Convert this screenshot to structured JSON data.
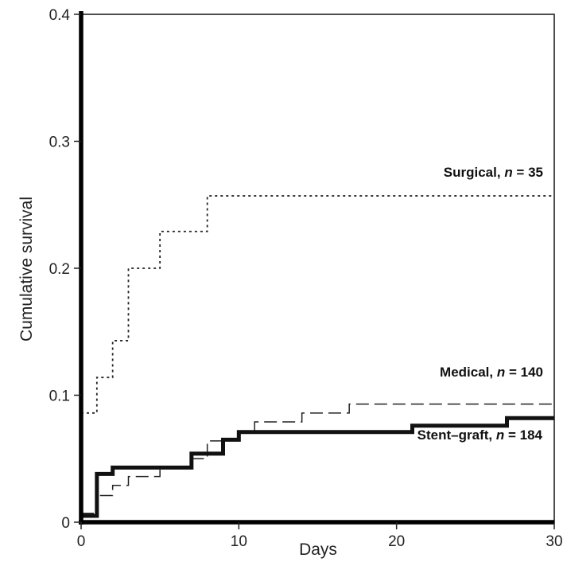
{
  "chart_data": {
    "type": "line",
    "title": "",
    "xlabel": "Days",
    "ylabel": "Cumulative survival",
    "xlim": [
      0,
      30
    ],
    "ylim": [
      0,
      0.4
    ],
    "x_ticks": [
      0,
      10,
      20,
      30
    ],
    "x_tick_labels": [
      "0",
      "10",
      "20",
      "30"
    ],
    "y_ticks": [
      0,
      0.1,
      0.2,
      0.3,
      0.4
    ],
    "y_tick_labels": [
      "0",
      "0.1",
      "0.2",
      "0.3",
      "0.4"
    ],
    "grid": false,
    "series": [
      {
        "name": "Surgical",
        "label_prefix": "Surgical, ",
        "label_n": "n",
        "label_suffix": " = 35",
        "line_style": "dotted",
        "color": "#222222",
        "x": [
          0,
          1,
          2,
          3,
          5,
          8,
          30
        ],
        "y": [
          0.086,
          0.114,
          0.143,
          0.2,
          0.229,
          0.257,
          0.257
        ]
      },
      {
        "name": "Medical",
        "label_prefix": "Medical, ",
        "label_n": "n",
        "label_suffix": " = 140",
        "line_style": "dashed",
        "color": "#222222",
        "x": [
          0,
          1,
          2,
          3,
          5,
          7,
          8,
          10,
          11,
          14,
          17,
          30
        ],
        "y": [
          0.007,
          0.021,
          0.029,
          0.036,
          0.043,
          0.05,
          0.064,
          0.071,
          0.079,
          0.086,
          0.093,
          0.093
        ]
      },
      {
        "name": "Stent–graft",
        "label_prefix": "Stent–graft, ",
        "label_n": "n",
        "label_suffix": " = 184",
        "line_style": "solid-thick",
        "color": "#111111",
        "x": [
          0,
          1,
          2,
          7,
          9,
          10,
          21,
          27,
          30
        ],
        "y": [
          0.005,
          0.038,
          0.043,
          0.054,
          0.065,
          0.071,
          0.076,
          0.082,
          0.082
        ]
      }
    ]
  }
}
